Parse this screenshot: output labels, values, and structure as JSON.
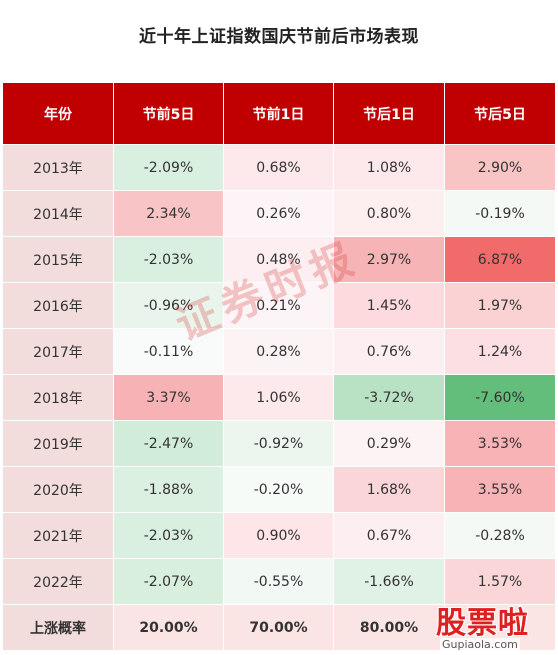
{
  "title": "近十年上证指数国庆节前后市场表现",
  "table": {
    "headers": [
      "年份",
      "节前5日",
      "节前1日",
      "节后1日",
      "节后5日"
    ],
    "rows": [
      {
        "year": "2013年",
        "values": [
          "-2.09%",
          "0.68%",
          "1.08%",
          "2.90%"
        ]
      },
      {
        "year": "2014年",
        "values": [
          "2.34%",
          "0.26%",
          "0.80%",
          "-0.19%"
        ]
      },
      {
        "year": "2015年",
        "values": [
          "-2.03%",
          "0.48%",
          "2.97%",
          "6.87%"
        ]
      },
      {
        "year": "2016年",
        "values": [
          "-0.96%",
          "0.21%",
          "1.45%",
          "1.97%"
        ]
      },
      {
        "year": "2017年",
        "values": [
          "-0.11%",
          "0.28%",
          "0.76%",
          "1.24%"
        ]
      },
      {
        "year": "2018年",
        "values": [
          "3.37%",
          "1.06%",
          "-3.72%",
          "-7.60%"
        ]
      },
      {
        "year": "2019年",
        "values": [
          "-2.47%",
          "-0.92%",
          "0.29%",
          "3.53%"
        ]
      },
      {
        "year": "2020年",
        "values": [
          "-1.88%",
          "-0.20%",
          "1.68%",
          "3.55%"
        ]
      },
      {
        "year": "2021年",
        "values": [
          "-2.03%",
          "0.90%",
          "0.67%",
          "-0.28%"
        ]
      },
      {
        "year": "2022年",
        "values": [
          "-2.07%",
          "-0.55%",
          "-1.66%",
          "1.57%"
        ]
      }
    ],
    "cell_colors": [
      [
        "#d9efdf",
        "#fde9ec",
        "#fde9ec",
        "#f8c4c4"
      ],
      [
        "#f9c4c6",
        "#fcf4f6",
        "#fdeef0",
        "#f4f9f5"
      ],
      [
        "#d9efdf",
        "#fdeff1",
        "#f7b4b6",
        "#f16b6b"
      ],
      [
        "#e9f5ec",
        "#fcf4f6",
        "#fcdadd",
        "#fbd2d4"
      ],
      [
        "#f8fbf9",
        "#fcf3f5",
        "#fdeff1",
        "#fbdfe2"
      ],
      [
        "#f6b2b4",
        "#fde9ec",
        "#b9e2c4",
        "#63be7b"
      ],
      [
        "#d1ecd9",
        "#ecf6ef",
        "#fdf2f4",
        "#f7b3b5"
      ],
      [
        "#dbf0e1",
        "#f7fbf8",
        "#fbd6d9",
        "#f7b3b5"
      ],
      [
        "#d9efdf",
        "#fde5e8",
        "#fdeff1",
        "#f4f9f5"
      ],
      [
        "#d8efde",
        "#f2f8f4",
        "#e0f2e5",
        "#fbd6d9"
      ]
    ],
    "summary": {
      "label": "上涨概率",
      "values": [
        "20.00%",
        "70.00%",
        "80.00%",
        ""
      ]
    }
  },
  "watermark": "证券时报",
  "logo": {
    "brand": "股票啦",
    "url": "Gupiaola.com"
  }
}
